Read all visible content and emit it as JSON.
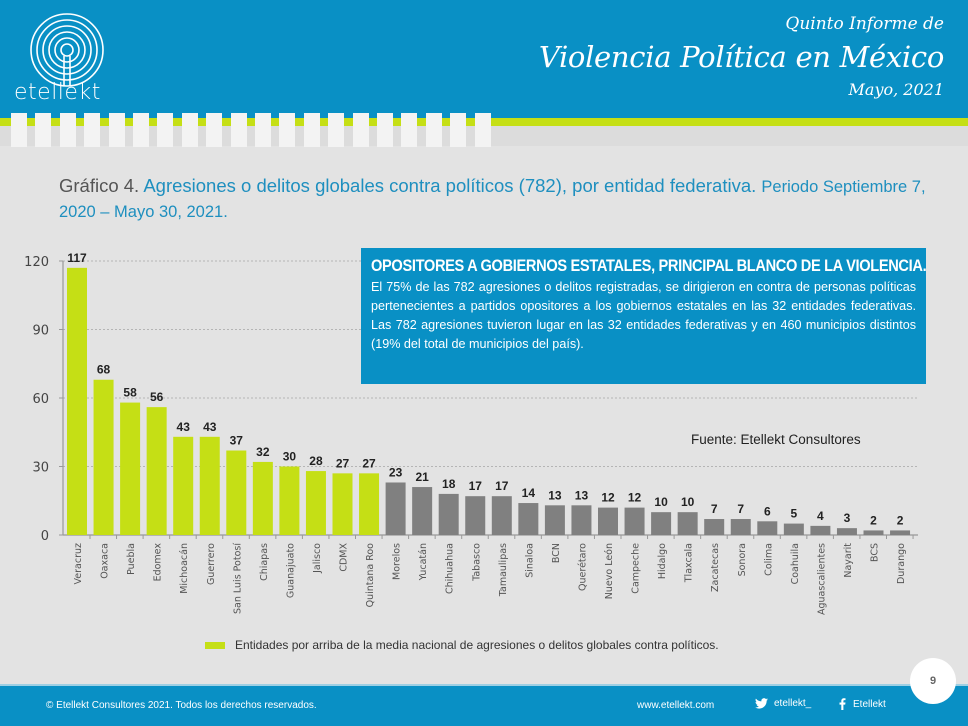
{
  "header": {
    "logo_text": "etellekt",
    "report_subtitle": "Quinto Informe de",
    "report_title": "Violencia Política en México",
    "report_date": "Mayo, 2021"
  },
  "chart_heading": {
    "number": "Gráfico 4.",
    "title": "Agresiones o delitos globales contra políticos (782), por entidad federativa.",
    "period": "Periodo Septiembre 7, 2020 – Mayo 30, 2021."
  },
  "callout": {
    "headline": "OPOSITORES A GOBIERNOS ESTATALES, PRINCIPAL BLANCO DE LA VIOLENCIA.",
    "body": "El 75% de las 782 agresiones o delitos registradas, se dirigieron en contra de personas políticas pertenecientes a partidos opositores a los gobiernos estatales en las 32 entidades federativas. Las 782 agresiones tuvieron lugar en las 32 entidades federativas y en 460 municipios distintos (19% del total de municipios del país)."
  },
  "source": "Fuente: Etellekt Consultores",
  "legend": {
    "label": "Entidades por arriba de la media nacional de agresiones o delitos globales contra políticos."
  },
  "colors": {
    "brand_blue": "#0990c5",
    "above_average": "#c5df15",
    "below_average": "#808080"
  },
  "chart_data": {
    "type": "bar",
    "title": "Agresiones o delitos globales contra políticos (782), por entidad federativa",
    "xlabel": "",
    "ylabel": "",
    "ylim": [
      0,
      120
    ],
    "yticks": [
      0,
      30,
      60,
      90,
      120
    ],
    "grid": true,
    "legend_position": "bottom",
    "categories": [
      "Veracruz",
      "Oaxaca",
      "Puebla",
      "Edomex",
      "Michoacán",
      "Guerrero",
      "San Luis Potosí",
      "Chiapas",
      "Guanajuato",
      "Jalisco",
      "CDMX",
      "Quintana Roo",
      "Morelos",
      "Yucatán",
      "Chihuahua",
      "Tabasco",
      "Tamaulipas",
      "Sinaloa",
      "BCN",
      "Querétaro",
      "Nuevo León",
      "Campeche",
      "Hidalgo",
      "Tlaxcala",
      "Zacatecas",
      "Sonora",
      "Colima",
      "Coahuila",
      "Aguascalientes",
      "Nayarit",
      "BCS",
      "Durango"
    ],
    "values": [
      117,
      68,
      58,
      56,
      43,
      43,
      37,
      32,
      30,
      28,
      27,
      27,
      23,
      21,
      18,
      17,
      17,
      14,
      13,
      13,
      12,
      12,
      10,
      10,
      7,
      7,
      6,
      5,
      4,
      3,
      2,
      2
    ],
    "above_average": [
      true,
      true,
      true,
      true,
      true,
      true,
      true,
      true,
      true,
      true,
      true,
      true,
      false,
      false,
      false,
      false,
      false,
      false,
      false,
      false,
      false,
      false,
      false,
      false,
      false,
      false,
      false,
      false,
      false,
      false,
      false,
      false
    ]
  },
  "footer": {
    "copyright": "© Etellekt Consultores 2021.  Todos los derechos reservados.",
    "website": "www.etellekt.com",
    "twitter": "etellekt_",
    "facebook": "Etellekt",
    "page_number": "9"
  }
}
